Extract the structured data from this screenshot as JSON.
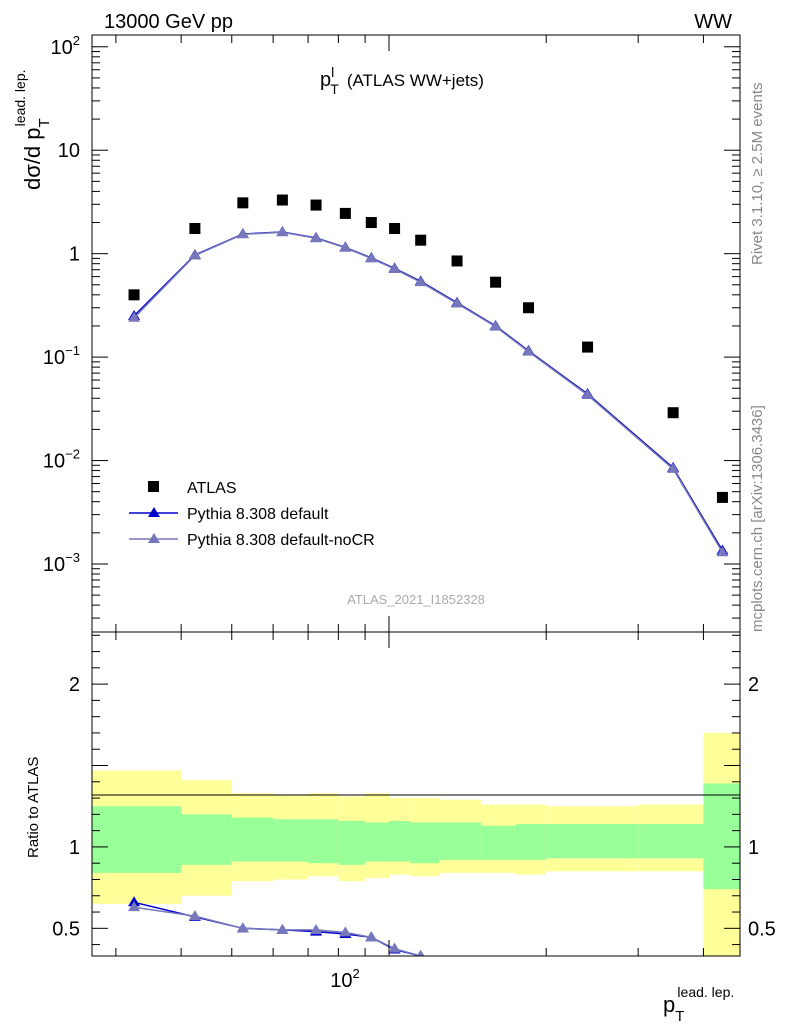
{
  "header": {
    "left": "13000 GeV pp",
    "right": "WW"
  },
  "side_labels": {
    "rivet": "Rivet 3.1.10, ≥ 2.5M events",
    "mcplots": "mcplots.cern.ch [arXiv:1306.3436]"
  },
  "watermark": "ATLAS_2021_I1852328",
  "colors": {
    "data": "#000000",
    "pythia_default": "#0000cc",
    "pythia_nocr": "#7777bb",
    "band_inner": "#99ff99",
    "band_outer": "#ffff99"
  },
  "chart_data": [
    {
      "type": "scatter",
      "title": "p_T^l (ATLAS WW+jets)",
      "title_main": "p",
      "title_sup": "l",
      "title_sub": "T",
      "title_rest": "(ATLAS WW+jets)",
      "ylabel_main": "dσ/d p",
      "ylabel_sub": "T",
      "ylabel_sup": "lead. lep.",
      "yscale": "log",
      "ylim": [
        0.00022,
        130
      ],
      "xscale": "log",
      "xlim": [
        27,
        470
      ],
      "legend_position": "bottom-left",
      "y_ticks": [
        {
          "v": 0.001,
          "base": "10",
          "exp": "−3"
        },
        {
          "v": 0.01,
          "base": "10",
          "exp": "−2"
        },
        {
          "v": 0.1,
          "base": "10",
          "exp": "−1"
        },
        {
          "v": 1,
          "base": "1",
          "exp": ""
        },
        {
          "v": 10,
          "base": "10",
          "exp": ""
        },
        {
          "v": 100,
          "base": "10",
          "exp": "2"
        }
      ],
      "series": [
        {
          "name": "ATLAS",
          "style": "data",
          "x": [
            32.5,
            42.5,
            52.5,
            62.5,
            72.5,
            82.5,
            92.5,
            102.5,
            115,
            135,
            160,
            185,
            240,
            350,
            435
          ],
          "y": [
            0.4,
            1.75,
            3.1,
            3.3,
            2.95,
            2.45,
            2.0,
            1.75,
            1.35,
            0.85,
            0.53,
            0.3,
            0.125,
            0.029,
            0.0044
          ]
        },
        {
          "name": "Pythia 8.308 default",
          "style": "default",
          "x": [
            32.5,
            42.5,
            52.5,
            62.5,
            72.5,
            82.5,
            92.5,
            102.5,
            115,
            135,
            160,
            185,
            240,
            350,
            435
          ],
          "y": [
            0.25,
            0.97,
            1.55,
            1.62,
            1.42,
            1.15,
            0.91,
            0.72,
            0.54,
            0.335,
            0.2,
            0.115,
            0.044,
            0.0085,
            0.00135
          ]
        },
        {
          "name": "Pythia 8.308 default-noCR",
          "style": "nocr",
          "x": [
            32.5,
            42.5,
            52.5,
            62.5,
            72.5,
            82.5,
            92.5,
            102.5,
            115,
            135,
            160,
            185,
            240,
            350,
            435
          ],
          "y": [
            0.24,
            0.96,
            1.54,
            1.61,
            1.41,
            1.14,
            0.9,
            0.71,
            0.53,
            0.33,
            0.197,
            0.113,
            0.043,
            0.0083,
            0.0013
          ]
        }
      ]
    },
    {
      "type": "line",
      "ylabel": "Ratio to ATLAS",
      "yscale": "linear",
      "ylim": [
        0.33,
        2.32
      ],
      "xscale": "log",
      "xlim": [
        27,
        470
      ],
      "xlabel_main": "p",
      "xlabel_sub": "T",
      "xlabel_sup": "lead. lep.",
      "y_ticks": [
        0.5,
        1,
        2
      ],
      "x_tick_label": {
        "v": 100,
        "base": "10",
        "exp": "2"
      },
      "bands": {
        "edges": [
          27,
          40,
          50,
          60,
          70,
          80,
          90,
          100,
          110,
          125,
          150,
          175,
          200,
          300,
          400,
          470
        ],
        "inner_lo": [
          0.84,
          0.89,
          0.91,
          0.91,
          0.9,
          0.89,
          0.91,
          0.91,
          0.9,
          0.92,
          0.92,
          0.92,
          0.93,
          0.93,
          0.74
        ],
        "inner_hi": [
          1.25,
          1.2,
          1.18,
          1.17,
          1.17,
          1.16,
          1.15,
          1.16,
          1.15,
          1.15,
          1.13,
          1.14,
          1.14,
          1.14,
          1.39
        ],
        "outer_lo": [
          0.65,
          0.7,
          0.79,
          0.8,
          0.82,
          0.79,
          0.81,
          0.83,
          0.82,
          0.84,
          0.84,
          0.83,
          0.85,
          0.85,
          0.33
        ],
        "outer_hi": [
          1.47,
          1.41,
          1.33,
          1.32,
          1.33,
          1.31,
          1.33,
          1.3,
          1.3,
          1.29,
          1.26,
          1.26,
          1.25,
          1.26,
          1.7
        ]
      },
      "series": [
        {
          "name": "Pythia 8.308 default",
          "style": "default",
          "x": [
            32.5,
            42.5,
            52.5,
            62.5,
            72.5,
            82.5,
            92.5,
            102.5,
            115
          ],
          "y": [
            0.66,
            0.57,
            0.5,
            0.49,
            0.48,
            0.465,
            0.445,
            0.37,
            0.33
          ]
        },
        {
          "name": "Pythia 8.308 default-noCR",
          "style": "nocr",
          "x": [
            32.5,
            42.5,
            52.5,
            62.5,
            72.5,
            82.5,
            92.5,
            102.5,
            115
          ],
          "y": [
            0.63,
            0.575,
            0.5,
            0.49,
            0.49,
            0.475,
            0.445,
            0.375,
            0.33
          ]
        }
      ]
    }
  ]
}
